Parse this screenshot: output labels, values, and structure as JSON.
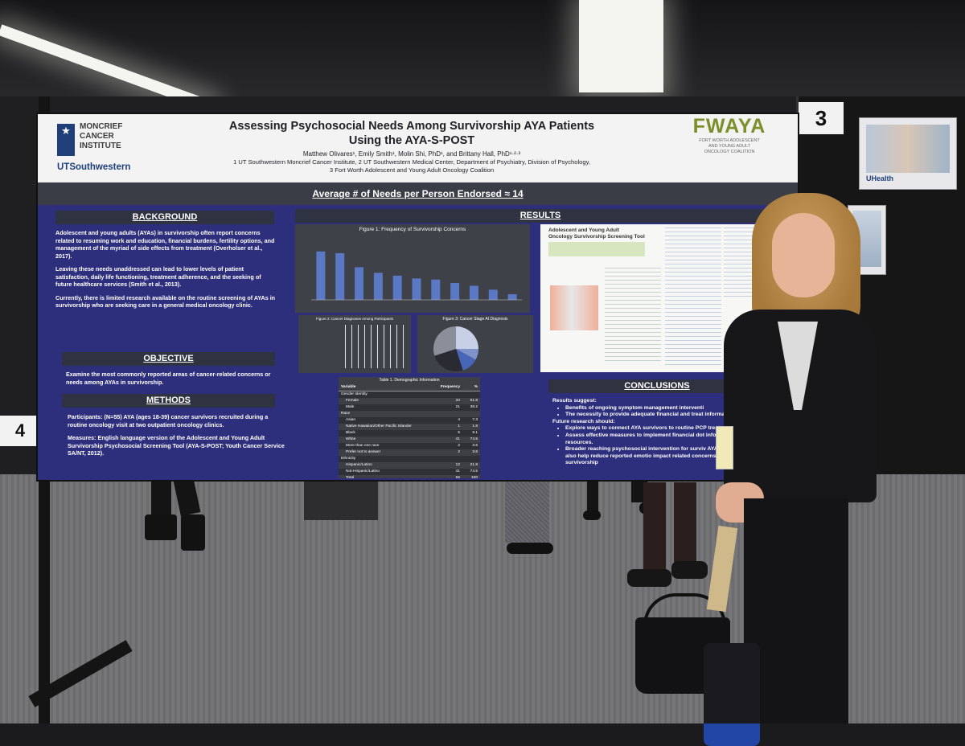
{
  "poster": {
    "title_line1": "Assessing Psychosocial Needs Among Survivorship AYA Patients",
    "title_line2": "Using the AYA-S-POST",
    "authors": "Matthew Olivares¹, Emily Smith¹, Molin Shi, PhD¹, and Brittany Hall, PhD¹·²·³",
    "affil1": "1 UT Southwestern Moncrief Cancer Institute, 2 UT Southwestern Medical Center, Department of Psychiatry, Division of Psychology,",
    "affil2": "3 Fort Worth Adolescent and Young Adult Oncology Coalition",
    "logo_left": {
      "line1": "MONCRIEF",
      "line2": "CANCER",
      "line3": "INSTITUTE",
      "line4": "UTSouthwestern"
    },
    "logo_right": {
      "name": "FWAYA",
      "sub1": "FORT WORTH ADOLESCENT",
      "sub2": "AND YOUNG ADULT",
      "sub3": "ONCOLOGY COALITION"
    },
    "banner": "Average # of Needs per Person Endorsed ≈ 14",
    "background": {
      "heading": "BACKGROUND",
      "p1": "Adolescent and young adults (AYAs) in survivorship often report concerns related to resuming work and education, financial burdens, fertility options, and management of the myriad of side effects from treatment (Overholser et al., 2017).",
      "p2": "Leaving these needs unaddressed can lead to lower levels of patient satisfaction, daily life functioning, treatment adherence, and the seeking of future healthcare services (Smith et al., 2013).",
      "p3": "Currently, there is limited research available on the routine screening of AYAs in survivorship who are seeking care in a general medical oncology clinic."
    },
    "objective": {
      "heading": "OBJECTIVE",
      "p1": "Examine the most commonly reported areas of cancer-related concerns or needs among AYAs in survivorship."
    },
    "methods": {
      "heading": "METHODS",
      "p1": "Participants: (N=55) AYA (ages 18-39) cancer survivors recruited during a routine oncology visit at two outpatient oncology clinics.",
      "p2": "Measures: English language version of the Adolescent and Young Adult Survivorship Psychosocial Screening Tool (AYA-S-POST; Youth Cancer Service SA/NT, 2012)."
    },
    "results": {
      "heading": "RESULTS",
      "fig1_title": "Figure 1: Frequency of Survivorship Concerns",
      "fig2_title": "Figure 2: Cancer Diagnoses Among Participants",
      "fig3_title": "Figure 3: Cancer Stage At Diagnosis",
      "fig1_bars": [
        0.86,
        0.83,
        0.58,
        0.48,
        0.43,
        0.38,
        0.36,
        0.3,
        0.25,
        0.18,
        0.1
      ],
      "fig3_slices": [
        0.25,
        0.08,
        0.12,
        0.25,
        0.3
      ],
      "fig3_colors": [
        "#c7d0e6",
        "#7f93c9",
        "#4766b8",
        "#2a2a33",
        "#8a8f99"
      ],
      "table_title": "Table 1. Demographic Information",
      "table_headers": [
        "Variable",
        "Frequency",
        "%"
      ],
      "table_rows": [
        [
          "Gender Identity",
          "",
          ""
        ],
        [
          "Female",
          "34",
          "61.8"
        ],
        [
          "Male",
          "21",
          "38.2"
        ],
        [
          "Race",
          "",
          ""
        ],
        [
          "Asian",
          "4",
          "7.3"
        ],
        [
          "Native Hawaiian/Other Pacific Islander",
          "1",
          "1.8"
        ],
        [
          "Black",
          "5",
          "9.1"
        ],
        [
          "White",
          "41",
          "74.5"
        ],
        [
          "More than one race",
          "2",
          "3.6"
        ],
        [
          "Prefer not to answer",
          "2",
          "3.6"
        ],
        [
          "Ethnicity",
          "",
          ""
        ],
        [
          "Hispanic/Latino",
          "12",
          "21.8"
        ],
        [
          "Not-Hispanic/Latino",
          "41",
          "74.5"
        ],
        [
          "Total",
          "55",
          "100"
        ]
      ],
      "tool_title1": "Adolescent and Young Adult",
      "tool_title2": "Oncology Survivorship Screening Tool"
    },
    "conclusions": {
      "heading": "CONCLUSIONS",
      "l1": "Results suggest:",
      "b1": "Benefits of ongoing symptom management interventi",
      "b2": "The necessity to provide adequate financial and treat information.",
      "l2": "Future research should:",
      "b3": "Explore ways to connect AYA survivors to routine PCP treatment.",
      "b4": "Assess effective measures to implement financial dot informational resources.",
      "b5": "Broader reaching psychosocial intervention for surviv AYA Care Plan may also help reduce reported emotio impact related concerns, specific to AYA survivorship"
    }
  },
  "board_numbers": {
    "right": "3",
    "left": "4"
  },
  "side_photo_label": "UHealth"
}
